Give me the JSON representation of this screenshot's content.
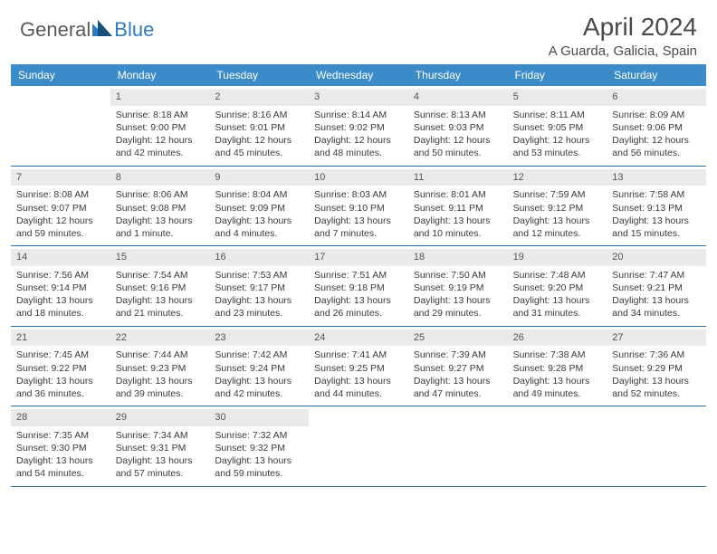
{
  "brand": {
    "text_general": "General",
    "text_blue": "Blue",
    "colors": {
      "general": "#5a5a5a",
      "blue": "#2d7cc0",
      "tri1": "#2d7cc0",
      "tri2": "#1a4f7a"
    }
  },
  "title": "April 2024",
  "location": "A Guarda, Galicia, Spain",
  "header_bg": "#3b8bc9",
  "daynum_bg": "#eaeaea",
  "row_border": "#2d6ea3",
  "text_color": "#3a3a3a",
  "weekdays": [
    "Sunday",
    "Monday",
    "Tuesday",
    "Wednesday",
    "Thursday",
    "Friday",
    "Saturday"
  ],
  "weeks": [
    [
      {
        "n": "",
        "sr": "",
        "ss": "",
        "dl": ""
      },
      {
        "n": "1",
        "sr": "Sunrise: 8:18 AM",
        "ss": "Sunset: 9:00 PM",
        "dl": "Daylight: 12 hours and 42 minutes."
      },
      {
        "n": "2",
        "sr": "Sunrise: 8:16 AM",
        "ss": "Sunset: 9:01 PM",
        "dl": "Daylight: 12 hours and 45 minutes."
      },
      {
        "n": "3",
        "sr": "Sunrise: 8:14 AM",
        "ss": "Sunset: 9:02 PM",
        "dl": "Daylight: 12 hours and 48 minutes."
      },
      {
        "n": "4",
        "sr": "Sunrise: 8:13 AM",
        "ss": "Sunset: 9:03 PM",
        "dl": "Daylight: 12 hours and 50 minutes."
      },
      {
        "n": "5",
        "sr": "Sunrise: 8:11 AM",
        "ss": "Sunset: 9:05 PM",
        "dl": "Daylight: 12 hours and 53 minutes."
      },
      {
        "n": "6",
        "sr": "Sunrise: 8:09 AM",
        "ss": "Sunset: 9:06 PM",
        "dl": "Daylight: 12 hours and 56 minutes."
      }
    ],
    [
      {
        "n": "7",
        "sr": "Sunrise: 8:08 AM",
        "ss": "Sunset: 9:07 PM",
        "dl": "Daylight: 12 hours and 59 minutes."
      },
      {
        "n": "8",
        "sr": "Sunrise: 8:06 AM",
        "ss": "Sunset: 9:08 PM",
        "dl": "Daylight: 13 hours and 1 minute."
      },
      {
        "n": "9",
        "sr": "Sunrise: 8:04 AM",
        "ss": "Sunset: 9:09 PM",
        "dl": "Daylight: 13 hours and 4 minutes."
      },
      {
        "n": "10",
        "sr": "Sunrise: 8:03 AM",
        "ss": "Sunset: 9:10 PM",
        "dl": "Daylight: 13 hours and 7 minutes."
      },
      {
        "n": "11",
        "sr": "Sunrise: 8:01 AM",
        "ss": "Sunset: 9:11 PM",
        "dl": "Daylight: 13 hours and 10 minutes."
      },
      {
        "n": "12",
        "sr": "Sunrise: 7:59 AM",
        "ss": "Sunset: 9:12 PM",
        "dl": "Daylight: 13 hours and 12 minutes."
      },
      {
        "n": "13",
        "sr": "Sunrise: 7:58 AM",
        "ss": "Sunset: 9:13 PM",
        "dl": "Daylight: 13 hours and 15 minutes."
      }
    ],
    [
      {
        "n": "14",
        "sr": "Sunrise: 7:56 AM",
        "ss": "Sunset: 9:14 PM",
        "dl": "Daylight: 13 hours and 18 minutes."
      },
      {
        "n": "15",
        "sr": "Sunrise: 7:54 AM",
        "ss": "Sunset: 9:16 PM",
        "dl": "Daylight: 13 hours and 21 minutes."
      },
      {
        "n": "16",
        "sr": "Sunrise: 7:53 AM",
        "ss": "Sunset: 9:17 PM",
        "dl": "Daylight: 13 hours and 23 minutes."
      },
      {
        "n": "17",
        "sr": "Sunrise: 7:51 AM",
        "ss": "Sunset: 9:18 PM",
        "dl": "Daylight: 13 hours and 26 minutes."
      },
      {
        "n": "18",
        "sr": "Sunrise: 7:50 AM",
        "ss": "Sunset: 9:19 PM",
        "dl": "Daylight: 13 hours and 29 minutes."
      },
      {
        "n": "19",
        "sr": "Sunrise: 7:48 AM",
        "ss": "Sunset: 9:20 PM",
        "dl": "Daylight: 13 hours and 31 minutes."
      },
      {
        "n": "20",
        "sr": "Sunrise: 7:47 AM",
        "ss": "Sunset: 9:21 PM",
        "dl": "Daylight: 13 hours and 34 minutes."
      }
    ],
    [
      {
        "n": "21",
        "sr": "Sunrise: 7:45 AM",
        "ss": "Sunset: 9:22 PM",
        "dl": "Daylight: 13 hours and 36 minutes."
      },
      {
        "n": "22",
        "sr": "Sunrise: 7:44 AM",
        "ss": "Sunset: 9:23 PM",
        "dl": "Daylight: 13 hours and 39 minutes."
      },
      {
        "n": "23",
        "sr": "Sunrise: 7:42 AM",
        "ss": "Sunset: 9:24 PM",
        "dl": "Daylight: 13 hours and 42 minutes."
      },
      {
        "n": "24",
        "sr": "Sunrise: 7:41 AM",
        "ss": "Sunset: 9:25 PM",
        "dl": "Daylight: 13 hours and 44 minutes."
      },
      {
        "n": "25",
        "sr": "Sunrise: 7:39 AM",
        "ss": "Sunset: 9:27 PM",
        "dl": "Daylight: 13 hours and 47 minutes."
      },
      {
        "n": "26",
        "sr": "Sunrise: 7:38 AM",
        "ss": "Sunset: 9:28 PM",
        "dl": "Daylight: 13 hours and 49 minutes."
      },
      {
        "n": "27",
        "sr": "Sunrise: 7:36 AM",
        "ss": "Sunset: 9:29 PM",
        "dl": "Daylight: 13 hours and 52 minutes."
      }
    ],
    [
      {
        "n": "28",
        "sr": "Sunrise: 7:35 AM",
        "ss": "Sunset: 9:30 PM",
        "dl": "Daylight: 13 hours and 54 minutes."
      },
      {
        "n": "29",
        "sr": "Sunrise: 7:34 AM",
        "ss": "Sunset: 9:31 PM",
        "dl": "Daylight: 13 hours and 57 minutes."
      },
      {
        "n": "30",
        "sr": "Sunrise: 7:32 AM",
        "ss": "Sunset: 9:32 PM",
        "dl": "Daylight: 13 hours and 59 minutes."
      },
      {
        "n": "",
        "sr": "",
        "ss": "",
        "dl": ""
      },
      {
        "n": "",
        "sr": "",
        "ss": "",
        "dl": ""
      },
      {
        "n": "",
        "sr": "",
        "ss": "",
        "dl": ""
      },
      {
        "n": "",
        "sr": "",
        "ss": "",
        "dl": ""
      }
    ]
  ]
}
